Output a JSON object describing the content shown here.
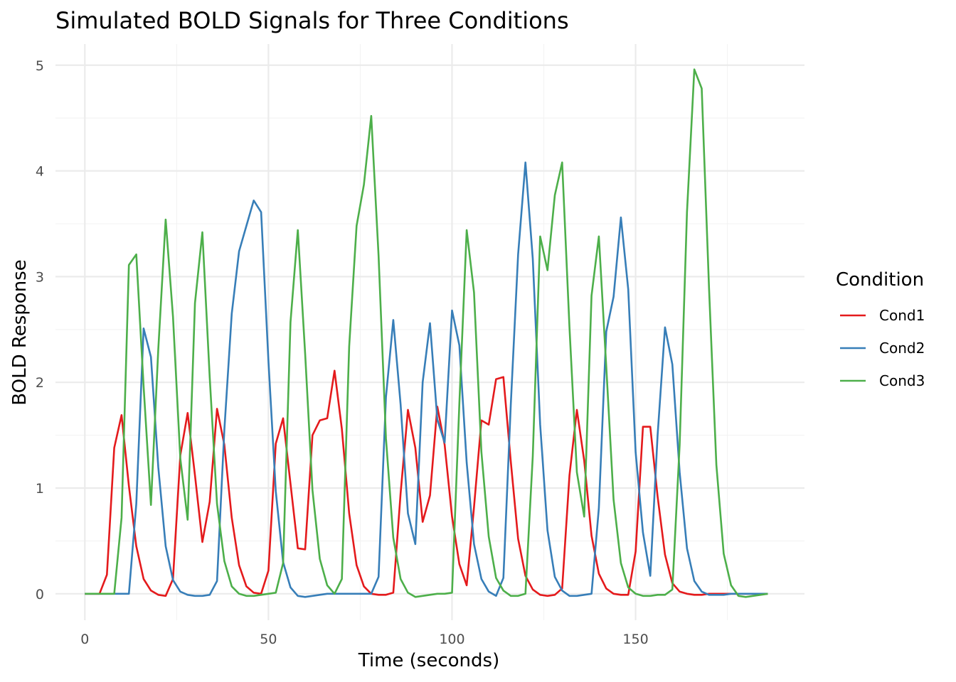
{
  "chart_data": {
    "type": "line",
    "title": "Simulated BOLD Signals for Three Conditions",
    "xlabel": "Time (seconds)",
    "ylabel": "BOLD Response",
    "xlim": [
      -8,
      196
    ],
    "ylim": [
      -0.25,
      5.2
    ],
    "x_ticks": [
      0,
      50,
      100,
      150
    ],
    "x_tick_labels": [
      "0",
      "50",
      "100",
      "150"
    ],
    "y_ticks": [
      0,
      1,
      2,
      3,
      4,
      5
    ],
    "y_tick_labels": [
      "0",
      "1",
      "2",
      "3",
      "4",
      "5"
    ],
    "grid": true,
    "legend": {
      "title": "Condition",
      "position": "right"
    },
    "series": [
      {
        "name": "Cond1",
        "color": "#E41A1C",
        "points": [
          [
            0,
            0
          ],
          [
            2,
            0
          ],
          [
            4,
            0
          ],
          [
            6,
            0.18
          ],
          [
            8,
            1.38
          ],
          [
            10,
            1.69
          ],
          [
            12,
            1.02
          ],
          [
            14,
            0.45
          ],
          [
            16,
            0.14
          ],
          [
            18,
            0.03
          ],
          [
            20,
            -0.01
          ],
          [
            22,
            -0.02
          ],
          [
            24,
            0.14
          ],
          [
            26,
            1.31
          ],
          [
            28,
            1.71
          ],
          [
            30,
            1.12
          ],
          [
            32,
            0.49
          ],
          [
            34,
            0.87
          ],
          [
            36,
            1.75
          ],
          [
            38,
            1.41
          ],
          [
            40,
            0.72
          ],
          [
            42,
            0.27
          ],
          [
            44,
            0.07
          ],
          [
            46,
            0.01
          ],
          [
            48,
            0
          ],
          [
            50,
            0.22
          ],
          [
            52,
            1.42
          ],
          [
            54,
            1.66
          ],
          [
            56,
            1.04
          ],
          [
            58,
            0.43
          ],
          [
            60,
            0.42
          ],
          [
            62,
            1.5
          ],
          [
            64,
            1.64
          ],
          [
            66,
            1.66
          ],
          [
            68,
            2.11
          ],
          [
            70,
            1.56
          ],
          [
            72,
            0.76
          ],
          [
            74,
            0.27
          ],
          [
            76,
            0.07
          ],
          [
            78,
            0.0
          ],
          [
            80,
            -0.01
          ],
          [
            82,
            -0.01
          ],
          [
            84,
            0.01
          ],
          [
            86,
            0.95
          ],
          [
            88,
            1.74
          ],
          [
            90,
            1.38
          ],
          [
            92,
            0.68
          ],
          [
            94,
            0.93
          ],
          [
            96,
            1.77
          ],
          [
            98,
            1.41
          ],
          [
            100,
            0.73
          ],
          [
            102,
            0.28
          ],
          [
            104,
            0.08
          ],
          [
            106,
            0.82
          ],
          [
            108,
            1.64
          ],
          [
            110,
            1.6
          ],
          [
            112,
            2.03
          ],
          [
            114,
            2.05
          ],
          [
            116,
            1.25
          ],
          [
            118,
            0.52
          ],
          [
            120,
            0.17
          ],
          [
            122,
            0.04
          ],
          [
            124,
            -0.01
          ],
          [
            126,
            -0.02
          ],
          [
            128,
            -0.01
          ],
          [
            130,
            0.05
          ],
          [
            132,
            1.12
          ],
          [
            134,
            1.74
          ],
          [
            136,
            1.26
          ],
          [
            138,
            0.55
          ],
          [
            140,
            0.19
          ],
          [
            142,
            0.05
          ],
          [
            144,
            0
          ],
          [
            146,
            -0.01
          ],
          [
            148,
            -0.01
          ],
          [
            150,
            0.4
          ],
          [
            152,
            1.58
          ],
          [
            154,
            1.58
          ],
          [
            156,
            0.92
          ],
          [
            158,
            0.37
          ],
          [
            160,
            0.1
          ],
          [
            162,
            0.02
          ],
          [
            164,
            0
          ],
          [
            166,
            -0.01
          ],
          [
            168,
            -0.01
          ],
          [
            170,
            0
          ],
          [
            172,
            0
          ],
          [
            174,
            0
          ],
          [
            176,
            0
          ],
          [
            178,
            0
          ],
          [
            180,
            0
          ],
          [
            182,
            0
          ],
          [
            184,
            0
          ],
          [
            186,
            0
          ]
        ]
      },
      {
        "name": "Cond2",
        "color": "#377EB8",
        "points": [
          [
            0,
            0
          ],
          [
            2,
            0
          ],
          [
            4,
            0
          ],
          [
            6,
            0
          ],
          [
            8,
            0
          ],
          [
            10,
            0
          ],
          [
            12,
            0
          ],
          [
            14,
            0.85
          ],
          [
            16,
            2.51
          ],
          [
            18,
            2.24
          ],
          [
            20,
            1.2
          ],
          [
            22,
            0.45
          ],
          [
            24,
            0.13
          ],
          [
            26,
            0.02
          ],
          [
            28,
            -0.01
          ],
          [
            30,
            -0.02
          ],
          [
            32,
            -0.02
          ],
          [
            34,
            -0.01
          ],
          [
            36,
            0.12
          ],
          [
            38,
            1.55
          ],
          [
            40,
            2.65
          ],
          [
            42,
            3.24
          ],
          [
            44,
            3.48
          ],
          [
            46,
            3.72
          ],
          [
            48,
            3.61
          ],
          [
            50,
            2.2
          ],
          [
            52,
            0.97
          ],
          [
            54,
            0.3
          ],
          [
            56,
            0.06
          ],
          [
            58,
            -0.02
          ],
          [
            60,
            -0.03
          ],
          [
            62,
            -0.02
          ],
          [
            64,
            -0.01
          ],
          [
            66,
            0
          ],
          [
            68,
            0
          ],
          [
            70,
            0
          ],
          [
            72,
            0
          ],
          [
            74,
            0
          ],
          [
            76,
            0
          ],
          [
            78,
            0
          ],
          [
            80,
            0.16
          ],
          [
            82,
            1.86
          ],
          [
            84,
            2.59
          ],
          [
            86,
            1.79
          ],
          [
            88,
            0.76
          ],
          [
            90,
            0.47
          ],
          [
            92,
            2.0
          ],
          [
            94,
            2.56
          ],
          [
            96,
            1.65
          ],
          [
            98,
            1.43
          ],
          [
            100,
            2.68
          ],
          [
            102,
            2.35
          ],
          [
            104,
            1.24
          ],
          [
            106,
            0.47
          ],
          [
            108,
            0.14
          ],
          [
            110,
            0.02
          ],
          [
            112,
            -0.02
          ],
          [
            114,
            0.15
          ],
          [
            116,
            1.79
          ],
          [
            118,
            3.21
          ],
          [
            120,
            4.08
          ],
          [
            122,
            3.17
          ],
          [
            124,
            1.6
          ],
          [
            126,
            0.6
          ],
          [
            128,
            0.16
          ],
          [
            130,
            0.03
          ],
          [
            132,
            -0.02
          ],
          [
            134,
            -0.02
          ],
          [
            136,
            -0.01
          ],
          [
            138,
            0
          ],
          [
            140,
            0.81
          ],
          [
            142,
            2.48
          ],
          [
            144,
            2.81
          ],
          [
            146,
            3.56
          ],
          [
            148,
            2.88
          ],
          [
            150,
            1.34
          ],
          [
            152,
            0.58
          ],
          [
            154,
            0.17
          ],
          [
            156,
            1.5
          ],
          [
            158,
            2.52
          ],
          [
            160,
            2.17
          ],
          [
            162,
            1.15
          ],
          [
            164,
            0.43
          ],
          [
            166,
            0.12
          ],
          [
            168,
            0.02
          ],
          [
            170,
            -0.01
          ],
          [
            172,
            -0.01
          ],
          [
            174,
            -0.01
          ],
          [
            176,
            0
          ],
          [
            178,
            0
          ],
          [
            180,
            0
          ],
          [
            182,
            0
          ],
          [
            184,
            0
          ],
          [
            186,
            0
          ]
        ]
      },
      {
        "name": "Cond3",
        "color": "#4DAF4A",
        "points": [
          [
            0,
            0
          ],
          [
            2,
            0
          ],
          [
            4,
            0
          ],
          [
            6,
            0
          ],
          [
            8,
            0
          ],
          [
            10,
            0.72
          ],
          [
            12,
            3.11
          ],
          [
            14,
            3.21
          ],
          [
            16,
            1.96
          ],
          [
            18,
            0.84
          ],
          [
            20,
            2.31
          ],
          [
            22,
            3.54
          ],
          [
            24,
            2.62
          ],
          [
            26,
            1.28
          ],
          [
            28,
            0.7
          ],
          [
            30,
            2.75
          ],
          [
            32,
            3.42
          ],
          [
            34,
            2.05
          ],
          [
            36,
            0.85
          ],
          [
            38,
            0.31
          ],
          [
            40,
            0.07
          ],
          [
            42,
            0
          ],
          [
            44,
            -0.02
          ],
          [
            46,
            -0.02
          ],
          [
            48,
            -0.01
          ],
          [
            50,
            0
          ],
          [
            52,
            0.01
          ],
          [
            54,
            0.29
          ],
          [
            56,
            2.57
          ],
          [
            58,
            3.44
          ],
          [
            60,
            2.27
          ],
          [
            62,
            0.98
          ],
          [
            64,
            0.33
          ],
          [
            66,
            0.08
          ],
          [
            68,
            0
          ],
          [
            70,
            0.14
          ],
          [
            72,
            2.34
          ],
          [
            74,
            3.48
          ],
          [
            76,
            3.87
          ],
          [
            78,
            4.52
          ],
          [
            80,
            3.2
          ],
          [
            82,
            1.47
          ],
          [
            84,
            0.53
          ],
          [
            86,
            0.14
          ],
          [
            88,
            0.01
          ],
          [
            90,
            -0.03
          ],
          [
            92,
            -0.02
          ],
          [
            94,
            -0.01
          ],
          [
            96,
            0
          ],
          [
            98,
            0
          ],
          [
            100,
            0.01
          ],
          [
            102,
            1.8
          ],
          [
            104,
            3.44
          ],
          [
            106,
            2.85
          ],
          [
            108,
            1.34
          ],
          [
            110,
            0.54
          ],
          [
            112,
            0.15
          ],
          [
            114,
            0.03
          ],
          [
            116,
            -0.02
          ],
          [
            118,
            -0.02
          ],
          [
            120,
            0
          ],
          [
            122,
            1.3
          ],
          [
            124,
            3.38
          ],
          [
            126,
            3.06
          ],
          [
            128,
            3.77
          ],
          [
            130,
            4.08
          ],
          [
            132,
            2.52
          ],
          [
            134,
            1.15
          ],
          [
            136,
            0.73
          ],
          [
            138,
            2.82
          ],
          [
            140,
            3.38
          ],
          [
            142,
            2.15
          ],
          [
            144,
            0.89
          ],
          [
            146,
            0.29
          ],
          [
            148,
            0.06
          ],
          [
            150,
            0
          ],
          [
            152,
            -0.02
          ],
          [
            154,
            -0.02
          ],
          [
            156,
            -0.01
          ],
          [
            158,
            -0.01
          ],
          [
            160,
            0.04
          ],
          [
            162,
            1.41
          ],
          [
            164,
            3.61
          ],
          [
            166,
            4.96
          ],
          [
            168,
            4.78
          ],
          [
            170,
            2.89
          ],
          [
            172,
            1.22
          ],
          [
            174,
            0.38
          ],
          [
            176,
            0.08
          ],
          [
            178,
            -0.02
          ],
          [
            180,
            -0.03
          ],
          [
            182,
            -0.02
          ],
          [
            184,
            -0.01
          ],
          [
            186,
            0
          ]
        ]
      }
    ]
  }
}
